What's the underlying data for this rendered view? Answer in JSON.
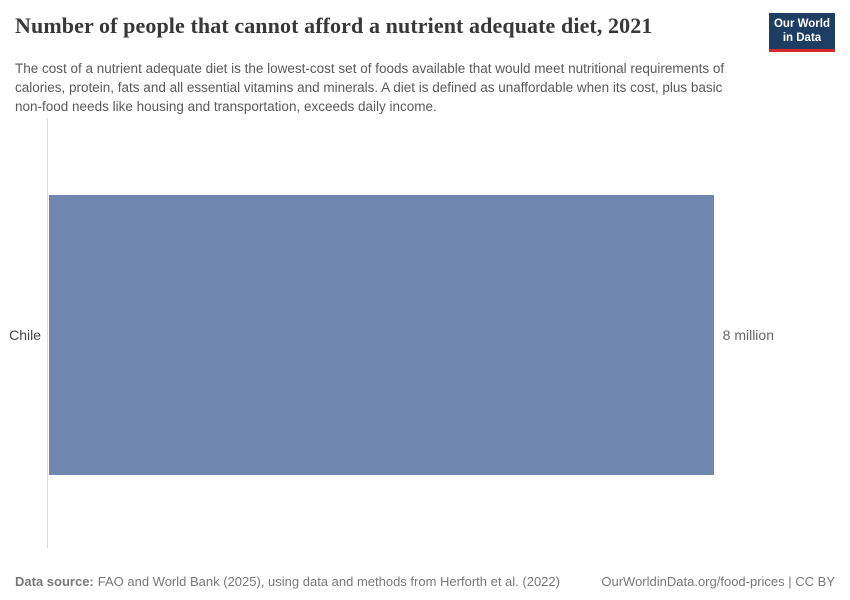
{
  "header": {
    "title": "Number of people that cannot afford a nutrient adequate diet, 2021",
    "subtitle": "The cost of a nutrient adequate diet is the lowest-cost set of foods available that would meet nutritional requirements of calories, protein, fats and all essential vitamins and minerals. A diet is defined as unaffordable when its cost, plus basic non-food needs like housing and transportation, exceeds daily income.",
    "logo": {
      "line1": "Our World",
      "line2": "in Data",
      "bg_color": "#1d3d63",
      "accent_color": "#d7282f"
    }
  },
  "chart_data": {
    "type": "bar",
    "orientation": "horizontal",
    "title": "Number of people that cannot afford a nutrient adequate diet, 2021",
    "categories": [
      "Chile"
    ],
    "values": [
      8
    ],
    "value_labels": [
      "8 million"
    ],
    "unit": "million people",
    "xlim": [
      0,
      8
    ],
    "bar_color": "#6f87ae",
    "axis_line_color": "#dcdcdc",
    "grid": "off",
    "legend": "none"
  },
  "footer": {
    "data_source_label": "Data source:",
    "data_source_text": "FAO and World Bank (2025), using data and methods from Herforth et al. (2022)",
    "link_text": "OurWorldinData.org/food-prices | CC BY"
  }
}
